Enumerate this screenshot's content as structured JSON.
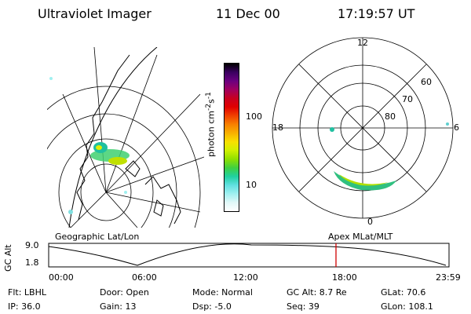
{
  "header": {
    "instrument": "Ultraviolet Imager",
    "date": "11 Dec 00",
    "time": "17:19:57 UT"
  },
  "colorbar": {
    "label": "photon cm",
    "label_sup": "-2",
    "label_mid": "s",
    "label_sup2": "-1",
    "ticks": [
      "100",
      "10"
    ],
    "colors": [
      "#000000",
      "#3a0060",
      "#6a0080",
      "#a00060",
      "#c80020",
      "#e00000",
      "#f04000",
      "#f88000",
      "#f8b000",
      "#f8e000",
      "#d0f000",
      "#90e000",
      "#40d040",
      "#20d0a0",
      "#60e0e0",
      "#a0f0f0",
      "#e0f8f8",
      "#ffffff"
    ]
  },
  "geo_panel": {
    "label": "Geographic Lat/Lon"
  },
  "polar_panel": {
    "label": "Apex MLat/MLT",
    "hour_labels": {
      "top": "12",
      "left": "18",
      "right": "6",
      "bottom": "0"
    },
    "lat_labels": [
      "60",
      "70",
      "80"
    ]
  },
  "timeline": {
    "ylabel": "GC Alt",
    "y_ticks": [
      "9.0",
      "1.8"
    ],
    "x_ticks": [
      "00:00",
      "06:00",
      "12:00",
      "18:00",
      "23:59"
    ],
    "marker_color": "#d00000"
  },
  "footer": {
    "row1": [
      "Flt: LBHL",
      "Door: Open",
      "Mode: Normal",
      "GC Alt: 8.7 Re",
      "GLat:  70.6"
    ],
    "row2": [
      "IP: 36.0",
      "Gain: 13",
      "Dsp:   -5.0",
      "Seq: 39",
      "GLon: 108.1"
    ]
  }
}
